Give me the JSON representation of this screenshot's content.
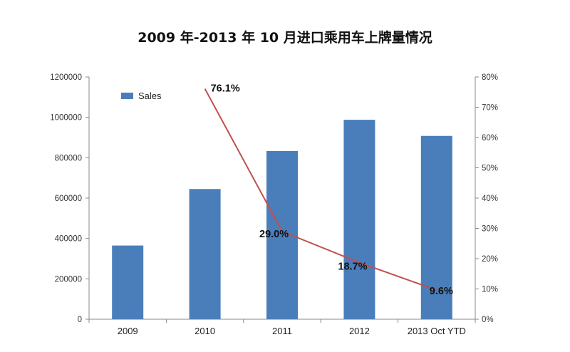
{
  "chart_data": {
    "type": "bar",
    "title": "2009 年-2013 年 10 月进口乘用车上牌量情况",
    "categories": [
      "2009",
      "2010",
      "2011",
      "2012",
      "2013 Oct YTD"
    ],
    "series": [
      {
        "name": "Sales",
        "kind": "bar",
        "axis": "left",
        "values": [
          365000,
          645000,
          833000,
          988000,
          908000
        ]
      },
      {
        "kind": "line",
        "axis": "right",
        "values": [
          null,
          76.1,
          29.0,
          18.7,
          9.6
        ],
        "labels": [
          "",
          "76.1%",
          "29.0%",
          "18.7%",
          "9.6%"
        ]
      }
    ],
    "y_left": {
      "lim": [
        0,
        1200000
      ],
      "ticks": [
        "0",
        "200000",
        "400000",
        "600000",
        "800000",
        "1000000",
        "1200000"
      ]
    },
    "y_right": {
      "lim": [
        0,
        80
      ],
      "ticks": [
        "0%",
        "10%",
        "20%",
        "30%",
        "40%",
        "50%",
        "60%",
        "70%",
        "80%"
      ]
    },
    "legend": {
      "position": "top-left",
      "entries": [
        "Sales"
      ]
    },
    "grid": false,
    "colors": {
      "bar": "#4a7ebb",
      "line": "#c0504d"
    }
  }
}
